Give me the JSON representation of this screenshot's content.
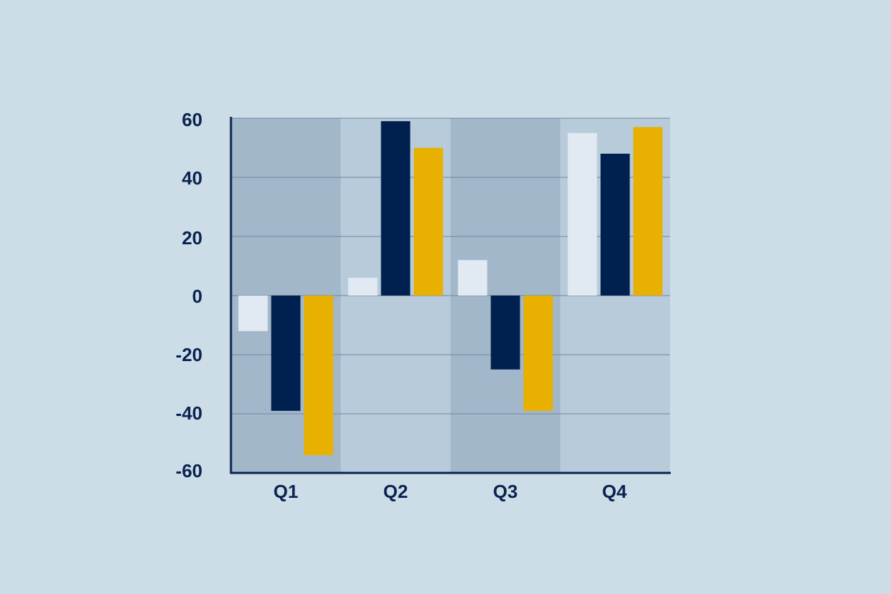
{
  "colors": {
    "background": "#cddde7",
    "band_dark": "#a2b8ca",
    "band_light": "#b8cbda",
    "gridline": "#6e86a0",
    "axis": "#0a2350",
    "text": "#0a2350"
  },
  "chart_data": {
    "type": "bar",
    "title": "",
    "xlabel": "",
    "ylabel": "",
    "categories": [
      "Q1",
      "Q2",
      "Q3",
      "Q4"
    ],
    "yticks": [
      "60",
      "40",
      "20",
      "0",
      "-20",
      "-40",
      "-60"
    ],
    "ylim": [
      -60,
      60
    ],
    "grid": true,
    "legend": "none",
    "series": [
      {
        "color": "#e1eaf2",
        "values": [
          -12,
          6,
          12,
          55
        ]
      },
      {
        "color": "#002050",
        "values": [
          -39,
          59,
          -25,
          48
        ]
      },
      {
        "color": "#e8b000",
        "values": [
          -54,
          50,
          -39,
          57
        ]
      }
    ]
  }
}
